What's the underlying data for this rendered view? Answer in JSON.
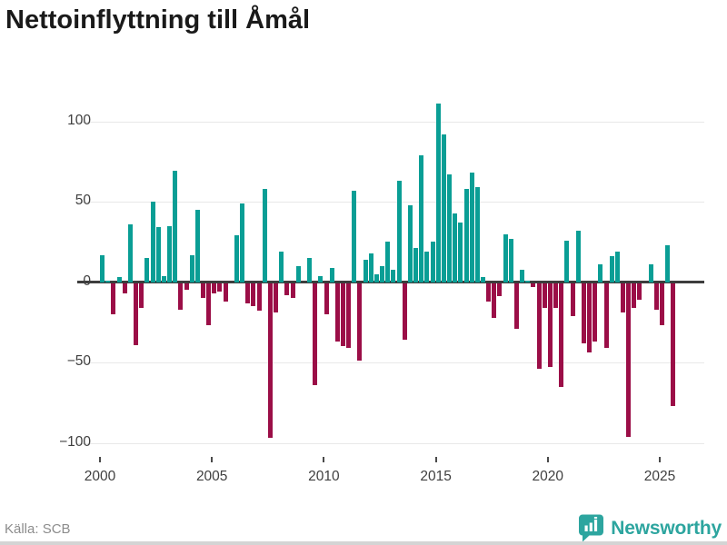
{
  "title": "Nettoinflyttning till Åmål",
  "source": "Källa: SCB",
  "brand": {
    "name": "Newsworthy"
  },
  "colors": {
    "positive": "#0a9e95",
    "negative": "#9b0e47",
    "grid": "#e8e8e8",
    "zero_line": "#3d3d3d",
    "title": "#1a1a1a",
    "axis_text": "#3f3f3f",
    "source_text": "#8c8c8c",
    "brand": "#2da59f",
    "background": "#ffffff"
  },
  "chart_data": {
    "type": "bar",
    "title": "Nettoinflyttning till Åmål",
    "xlabel": "",
    "ylabel": "",
    "frequency": "quarterly",
    "x_start": "2000-Q1",
    "x_end": "2025-Q3",
    "values": [
      17,
      1,
      -19,
      3,
      -6,
      36,
      -38,
      -15,
      15,
      50,
      34,
      4,
      35,
      69,
      -16,
      -4,
      17,
      45,
      -9,
      -26,
      -6,
      -5,
      -11,
      0,
      29,
      49,
      -12,
      -14,
      -17,
      58,
      -96,
      -18,
      19,
      -7,
      -9,
      10,
      0,
      15,
      -63,
      4,
      -19,
      9,
      -36,
      -39,
      -40,
      57,
      -48,
      14,
      18,
      5,
      10,
      25,
      8,
      63,
      -35,
      48,
      21,
      79,
      19,
      25,
      111,
      92,
      67,
      43,
      37,
      58,
      68,
      59,
      3,
      -11,
      -21,
      -8,
      30,
      27,
      -28,
      8,
      1,
      -2,
      -53,
      -15,
      -52,
      -15,
      -64,
      26,
      -20,
      32,
      -37,
      -43,
      -36,
      11,
      -40,
      16,
      19,
      -18,
      -95,
      -15,
      -10,
      0,
      11,
      -16,
      -26,
      23,
      -76
    ],
    "xticks": [
      2000,
      2005,
      2010,
      2015,
      2020,
      2025
    ],
    "yticks": [
      {
        "value": 100,
        "label": "100"
      },
      {
        "value": 50,
        "label": "50"
      },
      {
        "value": 0,
        "label": "0"
      },
      {
        "value": -50,
        "label": "−50"
      },
      {
        "value": -100,
        "label": "−100"
      }
    ],
    "ylim": [
      -110,
      120
    ],
    "grid": true,
    "legend": false
  }
}
